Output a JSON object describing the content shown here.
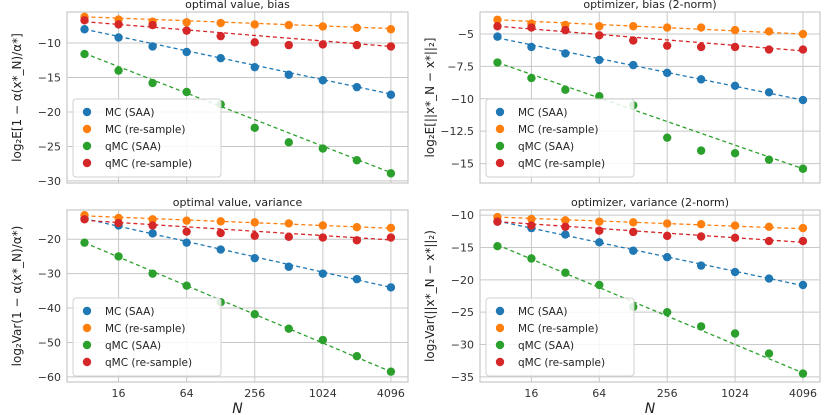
{
  "chart_data": [
    {
      "type": "scatter",
      "title": "optimal value, bias",
      "ylabel": "log₂E[1 − α(x*_N)/α*]",
      "xlabel": "",
      "x_scale": "log2",
      "xlim": [
        5.6,
        5800
      ],
      "ylim": [
        -30.3,
        -5.5
      ],
      "yticks": [
        -30,
        -25,
        -20,
        -15,
        -10
      ],
      "x": [
        8,
        16,
        32,
        64,
        128,
        256,
        512,
        1024,
        2048,
        4096
      ],
      "series": [
        {
          "name": "MC (SAA)",
          "color": "#1f77b4",
          "values": [
            -8.0,
            -9.2,
            -10.5,
            -11.3,
            -12.2,
            -13.5,
            -14.6,
            -15.4,
            -16.4,
            -17.5
          ],
          "fit": [
            -8.0,
            -17.4
          ]
        },
        {
          "name": "MC (re-sample)",
          "color": "#ff7f0e",
          "values": [
            -6.2,
            -6.6,
            -6.9,
            -7.0,
            -7.1,
            -7.3,
            -7.4,
            -7.6,
            -7.8,
            -8.0
          ],
          "fit": [
            -6.2,
            -7.9
          ]
        },
        {
          "name": "qMC (SAA)",
          "color": "#2ca02c",
          "values": [
            -11.6,
            -14.0,
            -15.8,
            -17.1,
            -18.9,
            -22.3,
            -24.4,
            -25.3,
            -27.0,
            -28.9
          ],
          "fit": [
            -11.5,
            -28.8
          ]
        },
        {
          "name": "qMC (re-sample)",
          "color": "#d62728",
          "values": [
            -6.7,
            -7.3,
            -7.4,
            -8.2,
            -9.0,
            -9.9,
            -10.3,
            -10.2,
            -10.3,
            -10.5
          ],
          "fit": [
            -6.9,
            -10.5
          ]
        }
      ],
      "legend": "bottom-left"
    },
    {
      "type": "scatter",
      "title": "optimizer, bias (2-norm)",
      "ylabel": "log₂E[||x*_N − x*||₂]",
      "xlabel": "",
      "x_scale": "log2",
      "xlim": [
        5.6,
        5800
      ],
      "ylim": [
        -16.5,
        -3.3
      ],
      "yticks": [
        -15.0,
        -12.5,
        -10.0,
        -7.5,
        -5.0
      ],
      "x": [
        8,
        16,
        32,
        64,
        128,
        256,
        512,
        1024,
        2048,
        4096
      ],
      "series": [
        {
          "name": "MC (SAA)",
          "color": "#1f77b4",
          "values": [
            -5.2,
            -6.0,
            -6.5,
            -7.0,
            -7.4,
            -8.0,
            -8.5,
            -9.0,
            -9.5,
            -10.1
          ],
          "fit": [
            -5.3,
            -10.1
          ]
        },
        {
          "name": "MC (re-sample)",
          "color": "#ff7f0e",
          "values": [
            -3.9,
            -4.2,
            -4.3,
            -4.4,
            -4.4,
            -4.5,
            -4.5,
            -4.7,
            -4.8,
            -5.0
          ],
          "fit": [
            -3.9,
            -5.0
          ]
        },
        {
          "name": "qMC (SAA)",
          "color": "#2ca02c",
          "values": [
            -7.2,
            -8.4,
            -9.3,
            -9.8,
            -10.5,
            -13.0,
            -14.0,
            -14.2,
            -14.7,
            -15.4
          ],
          "fit": [
            -7.2,
            -15.4
          ]
        },
        {
          "name": "qMC (re-sample)",
          "color": "#d62728",
          "values": [
            -4.4,
            -4.5,
            -4.7,
            -5.1,
            -5.5,
            -5.9,
            -6.0,
            -6.0,
            -6.2,
            -6.2
          ],
          "fit": [
            -4.4,
            -6.3
          ]
        }
      ],
      "legend": "bottom-left"
    },
    {
      "type": "scatter",
      "title": "optimal value, variance",
      "ylabel": "log₂Var(1 − α(x*_N)/α*)",
      "xlabel": "N",
      "x_scale": "log2",
      "xlim": [
        5.6,
        5800
      ],
      "xticks": [
        16,
        64,
        256,
        1024,
        4096
      ],
      "ylim": [
        -61.5,
        -11.5
      ],
      "yticks": [
        -60,
        -50,
        -40,
        -30,
        -20
      ],
      "x": [
        8,
        16,
        32,
        64,
        128,
        256,
        512,
        1024,
        2048,
        4096
      ],
      "series": [
        {
          "name": "MC (SAA)",
          "color": "#1f77b4",
          "values": [
            -14.0,
            -16.0,
            -18.3,
            -21.0,
            -23.0,
            -25.5,
            -28.0,
            -30.0,
            -31.6,
            -34.0
          ],
          "fit": [
            -14.0,
            -34.0
          ]
        },
        {
          "name": "MC (re-sample)",
          "color": "#ff7f0e",
          "values": [
            -13.0,
            -13.8,
            -14.2,
            -14.6,
            -14.8,
            -15.1,
            -15.4,
            -16.0,
            -16.5,
            -16.7
          ],
          "fit": [
            -13.2,
            -16.8
          ]
        },
        {
          "name": "qMC (SAA)",
          "color": "#2ca02c",
          "values": [
            -21.0,
            -25.0,
            -30.0,
            -33.5,
            -38.3,
            -41.8,
            -46.0,
            -49.3,
            -54.0,
            -58.5
          ],
          "fit": [
            -21.0,
            -58.5
          ]
        },
        {
          "name": "qMC (re-sample)",
          "color": "#d62728",
          "values": [
            -14.2,
            -15.3,
            -16.0,
            -17.8,
            -18.2,
            -19.0,
            -19.3,
            -19.5,
            -20.3,
            -19.5
          ],
          "fit": [
            -14.5,
            -20.2
          ]
        }
      ],
      "legend": "bottom-left"
    },
    {
      "type": "scatter",
      "title": "optimizer, variance (2-norm)",
      "ylabel": "log₂Var(||x*_N − x*||₂)",
      "xlabel": "N",
      "x_scale": "log2",
      "xlim": [
        5.6,
        5800
      ],
      "xticks": [
        16,
        64,
        256,
        1024,
        4096
      ],
      "ylim": [
        -35.8,
        -9.2
      ],
      "yticks": [
        -35,
        -30,
        -25,
        -20,
        -15,
        -10
      ],
      "x": [
        8,
        16,
        32,
        64,
        128,
        256,
        512,
        1024,
        2048,
        4096
      ],
      "series": [
        {
          "name": "MC (SAA)",
          "color": "#1f77b4",
          "values": [
            -11.0,
            -12.0,
            -13.0,
            -14.2,
            -15.5,
            -16.5,
            -17.8,
            -18.8,
            -19.8,
            -20.8
          ],
          "fit": [
            -10.9,
            -20.9
          ]
        },
        {
          "name": "MC (re-sample)",
          "color": "#ff7f0e",
          "values": [
            -10.3,
            -10.6,
            -10.8,
            -11.0,
            -11.1,
            -11.3,
            -11.4,
            -11.6,
            -11.8,
            -12.0
          ],
          "fit": [
            -10.3,
            -12.1
          ]
        },
        {
          "name": "qMC (SAA)",
          "color": "#2ca02c",
          "values": [
            -14.8,
            -16.7,
            -18.9,
            -20.8,
            -24.2,
            -25.0,
            -27.2,
            -28.3,
            -31.4,
            -34.5
          ],
          "fit": [
            -14.6,
            -34.4
          ]
        },
        {
          "name": "qMC (re-sample)",
          "color": "#d62728",
          "values": [
            -11.0,
            -11.6,
            -11.8,
            -12.4,
            -12.6,
            -13.2,
            -13.3,
            -13.5,
            -14.0,
            -14.0
          ],
          "fit": [
            -11.0,
            -14.2
          ]
        }
      ],
      "legend": "bottom-left"
    }
  ]
}
